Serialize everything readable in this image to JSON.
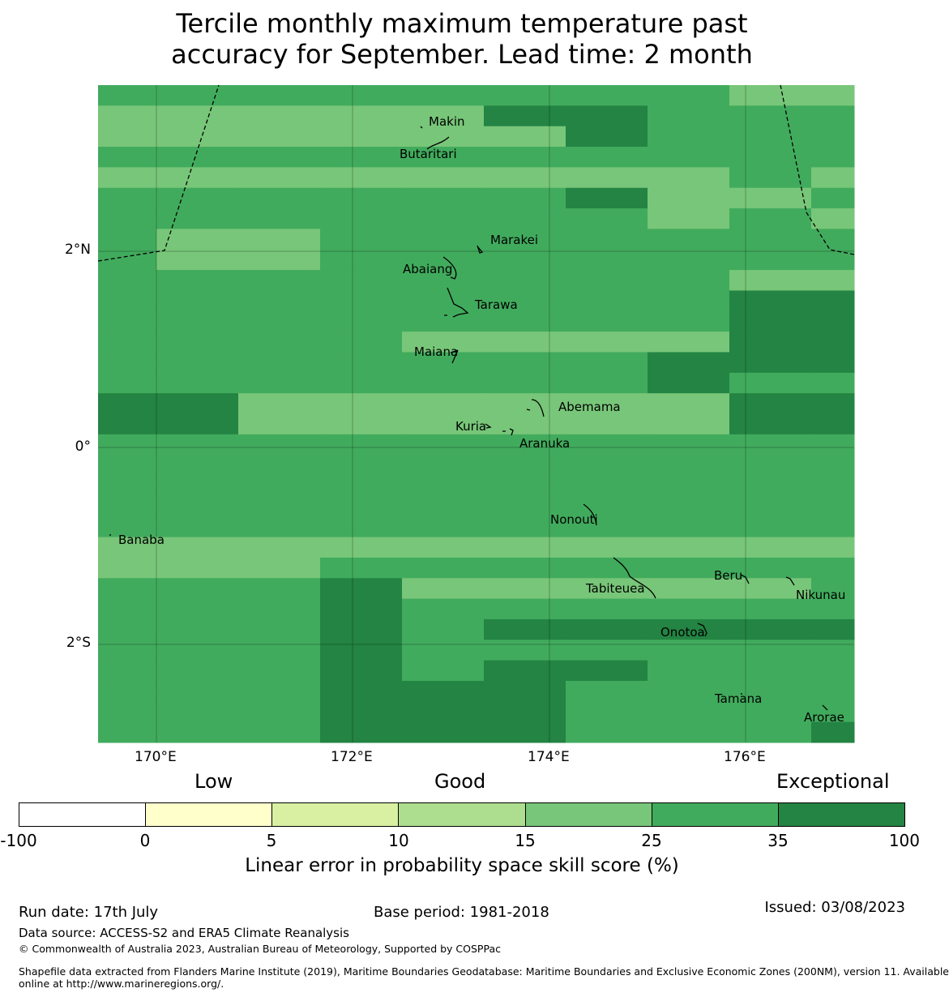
{
  "title": {
    "line1": "Tercile monthly maximum temperature past",
    "line2": "accuracy for September. Lead time: 2 month"
  },
  "map": {
    "lon_ticks": [
      "170°E",
      "172°E",
      "174°E",
      "176°E"
    ],
    "lat_ticks": [
      "2°N",
      "0°",
      "2°S"
    ],
    "places": [
      "Makin",
      "Butaritari",
      "Marakei",
      "Abaiang",
      "Tarawa",
      "Maiana",
      "Abemama",
      "Kuria",
      "Aranuka",
      "Nonouti",
      "Banaba",
      "Beru",
      "Nikunau",
      "Tabiteuea",
      "Onotoa",
      "Tamana",
      "Arorae"
    ],
    "grid_categories": [
      "1111111122",
      "2222233111",
      "2222223111",
      "1111111111",
      "2222222212",
      "1111113221",
      "1111111212",
      "1221111111",
      "1221111111",
      "1111111122",
      "1111111133",
      "1111111133",
      "1111222233",
      "1111111333",
      "1111111311",
      "3322222233",
      "3322222233",
      "1111111111",
      "1111111111",
      "1111111111",
      "1111111111",
      "1111111111",
      "2222222222",
      "2221111111",
      "1113222221",
      "1113111111",
      "1113133333",
      "1113111111",
      "1113133111",
      "1113331111",
      "1113331111",
      "1113331113"
    ]
  },
  "legend": {
    "categories": [
      "Low",
      "Good",
      "Exceptional"
    ],
    "boundaries": [
      "-100",
      "0",
      "5",
      "10",
      "15",
      "25",
      "35",
      "100"
    ],
    "colors": [
      "#ffffff",
      "#ffffcc",
      "#d9f0a3",
      "#addd8e",
      "#78c679",
      "#41ab5d",
      "#238443"
    ],
    "label": "Linear error in probability space skill score (%)"
  },
  "footer": {
    "run_date": "Run date: 17th July",
    "base_period": "Base period: 1981-2018",
    "issued": "Issued: 03/08/2023",
    "data_source": "Data source: ACCESS-S2 and ERA5 Climate Reanalysis",
    "copyright": "© Commonwealth of Australia 2023, Australian Bureau of Meteorology, Supported by COSPPac",
    "shapefile_1": "Shapefile data extracted from Flanders Marine Institute (2019), Maritime Boundaries Geodatabase: Maritime Boundaries and Exclusive Economic Zones (200NM), version 11. Available",
    "shapefile_2": "online at http://www.marineregions.org/."
  }
}
